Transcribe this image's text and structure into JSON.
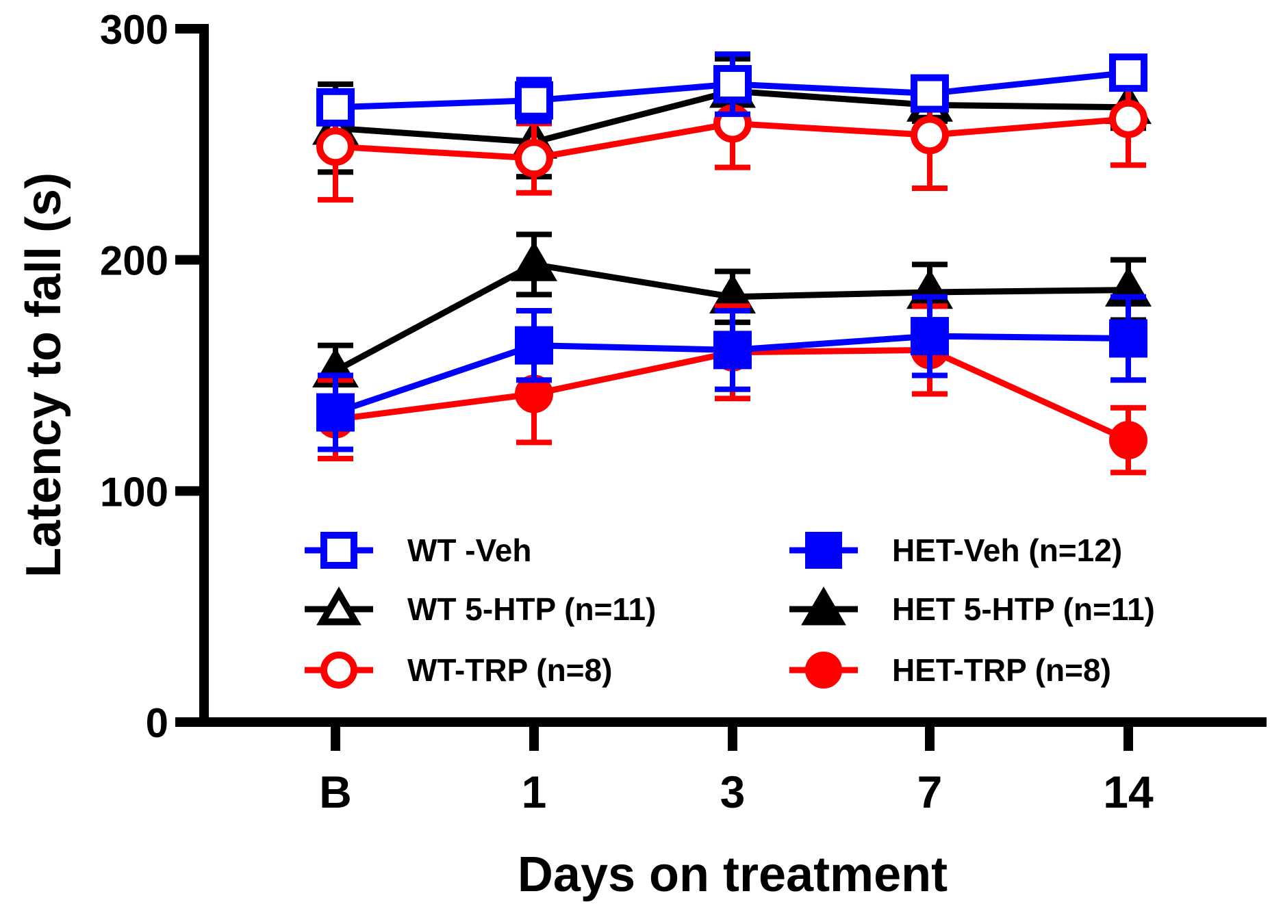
{
  "chart_data": {
    "type": "line",
    "title": "",
    "xlabel": "Days on treatment",
    "ylabel": "Latency to fall (s)",
    "categories": [
      "B",
      "1",
      "3",
      "7",
      "14"
    ],
    "ylim": [
      0,
      300
    ],
    "yticks": [
      0,
      100,
      200,
      300
    ],
    "grid": false,
    "legend_position": "bottom-inside",
    "series": [
      {
        "name": "WT -Veh",
        "color": "#0000ff",
        "marker": "square",
        "filled": false,
        "values": [
          266,
          269,
          276,
          272,
          281
        ],
        "errors": [
          6,
          9,
          13,
          6,
          4
        ]
      },
      {
        "name": "WT 5-HTP (n=11)",
        "color": "#000000",
        "marker": "triangle",
        "filled": false,
        "values": [
          257,
          251,
          273,
          267,
          266
        ],
        "errors": [
          19,
          15,
          14,
          7,
          9
        ]
      },
      {
        "name": "WT-TRP (n=8)",
        "color": "#ff0000",
        "marker": "circle",
        "filled": false,
        "values": [
          249,
          244,
          259,
          254,
          261
        ],
        "errors": [
          23,
          15,
          19,
          23,
          20
        ]
      },
      {
        "name": "HET-Veh (n=12)",
        "color": "#0000ff",
        "marker": "square",
        "filled": true,
        "values": [
          134,
          163,
          161,
          167,
          166
        ],
        "errors": [
          16,
          15,
          17,
          17,
          18
        ]
      },
      {
        "name": "HET 5-HTP (n=11)",
        "color": "#000000",
        "marker": "triangle",
        "filled": true,
        "values": [
          152,
          198,
          184,
          186,
          187
        ],
        "errors": [
          11,
          13,
          11,
          12,
          13
        ]
      },
      {
        "name": "HET-TRP (n=8)",
        "color": "#ff0000",
        "marker": "circle",
        "filled": true,
        "values": [
          131,
          142,
          160,
          161,
          122
        ],
        "errors": [
          17,
          21,
          20,
          19,
          14
        ]
      }
    ]
  }
}
